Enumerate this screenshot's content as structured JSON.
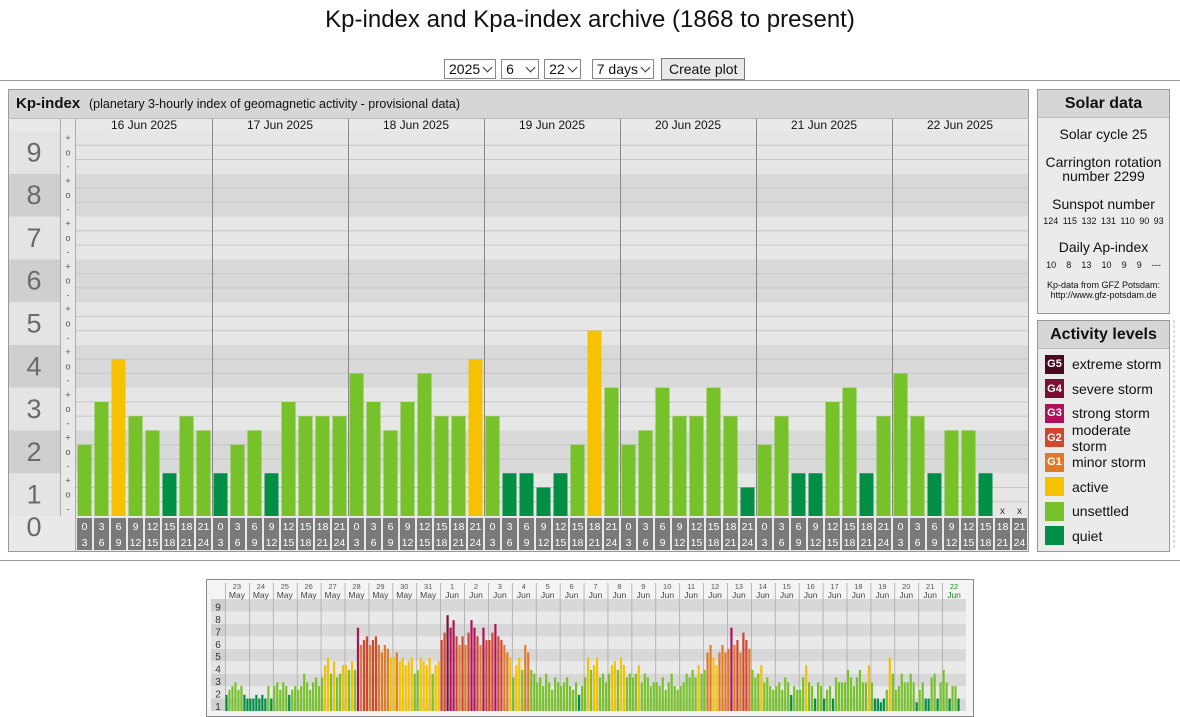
{
  "page": {
    "title": "Kp-index and Kpa-index archive (1868 to present)"
  },
  "controls": {
    "year": "2025",
    "month": "6",
    "day": "22",
    "range": "7 days",
    "button": "Create plot"
  },
  "colors": {
    "quiet": "#008f44",
    "unsettled": "#77c22a",
    "active": "#f6c200",
    "G1": "#e07a26",
    "G2": "#d2452e",
    "G3": "#b0125a",
    "G4": "#7b1030",
    "G5": "#4a0a22"
  },
  "chart_data": [
    {
      "type": "bar",
      "title": "Kp-index",
      "subtitle": "(planetary 3-hourly index of geomagnetic activity - provisional data)",
      "ylim": [
        0,
        9
      ],
      "y_ticks": [
        "0",
        "1",
        "2",
        "3",
        "4",
        "5",
        "6",
        "7",
        "8",
        "9"
      ],
      "minor_marks": [
        "-",
        "o",
        "+"
      ],
      "days": [
        "16 Jun 2025",
        "17 Jun 2025",
        "18 Jun 2025",
        "19 Jun 2025",
        "20 Jun 2025",
        "21 Jun 2025",
        "22 Jun 2025"
      ],
      "intervals": [
        [
          "0",
          "3"
        ],
        [
          "3",
          "6"
        ],
        [
          "6",
          "9"
        ],
        [
          "9",
          "12"
        ],
        [
          "12",
          "15"
        ],
        [
          "15",
          "18"
        ],
        [
          "18",
          "21"
        ],
        [
          "21",
          "24"
        ]
      ],
      "missing_label": "x",
      "values": [
        [
          1.667,
          2.667,
          3.667,
          2.333,
          2.0,
          1.0,
          2.333,
          2.0
        ],
        [
          1.0,
          1.667,
          2.0,
          1.0,
          2.667,
          2.333,
          2.333,
          2.333
        ],
        [
          3.333,
          2.667,
          2.0,
          2.667,
          3.333,
          2.333,
          2.333,
          3.667
        ],
        [
          2.333,
          1.0,
          1.0,
          0.667,
          1.0,
          1.667,
          4.333,
          3.0
        ],
        [
          1.667,
          2.0,
          3.0,
          2.333,
          2.333,
          3.0,
          2.333,
          0.667
        ],
        [
          1.667,
          2.333,
          1.0,
          1.0,
          2.667,
          3.0,
          1.0,
          2.333
        ],
        [
          3.333,
          2.333,
          1.0,
          2.0,
          2.0,
          1.0,
          null,
          null
        ]
      ]
    },
    {
      "type": "bar",
      "title": "",
      "ylim": [
        0,
        9
      ],
      "y_ticks": [
        "1",
        "2",
        "3",
        "4",
        "5",
        "6",
        "7",
        "8",
        "9"
      ],
      "dates": [
        [
          "23",
          "May"
        ],
        [
          "24",
          "May"
        ],
        [
          "25",
          "May"
        ],
        [
          "26",
          "May"
        ],
        [
          "27",
          "May"
        ],
        [
          "28",
          "May"
        ],
        [
          "29",
          "May"
        ],
        [
          "30",
          "May"
        ],
        [
          "31",
          "May"
        ],
        [
          "1",
          "Jun"
        ],
        [
          "2",
          "Jun"
        ],
        [
          "3",
          "Jun"
        ],
        [
          "4",
          "Jun"
        ],
        [
          "5",
          "Jun"
        ],
        [
          "6",
          "Jun"
        ],
        [
          "7",
          "Jun"
        ],
        [
          "8",
          "Jun"
        ],
        [
          "9",
          "Jun"
        ],
        [
          "10",
          "Jun"
        ],
        [
          "11",
          "Jun"
        ],
        [
          "12",
          "Jun"
        ],
        [
          "13",
          "Jun"
        ],
        [
          "14",
          "Jun"
        ],
        [
          "15",
          "Jun"
        ],
        [
          "16",
          "Jun"
        ],
        [
          "17",
          "Jun"
        ],
        [
          "18",
          "Jun"
        ],
        [
          "19",
          "Jun"
        ],
        [
          "20",
          "Jun"
        ],
        [
          "21",
          "Jun"
        ],
        [
          "22",
          "Jun"
        ]
      ],
      "values": [
        [
          1.3,
          1.7,
          2.0,
          2.3,
          1.7,
          2.0,
          1.3,
          1.0
        ],
        [
          1.0,
          1.0,
          1.3,
          1.0,
          1.3,
          1.0,
          2.0,
          1.0
        ],
        [
          2.0,
          2.3,
          1.7,
          2.3,
          2.0,
          1.3,
          1.7,
          2.0
        ],
        [
          1.7,
          2.0,
          3.0,
          2.3,
          1.7,
          2.3,
          2.7,
          2.0
        ],
        [
          2.7,
          3.7,
          4.3,
          3.0,
          4.0,
          2.7,
          3.0,
          3.7
        ],
        [
          3.7,
          3.3,
          4.0,
          3.3,
          6.7,
          5.3,
          5.7,
          6.0
        ],
        [
          5.3,
          5.7,
          6.0,
          5.3,
          4.7,
          5.3,
          5.0,
          4.3
        ],
        [
          4.3,
          4.7,
          4.0,
          4.3,
          3.7,
          4.0,
          4.3,
          3.0
        ],
        [
          3.3,
          4.3,
          4.0,
          3.7,
          4.3,
          3.0,
          3.7,
          4.0
        ],
        [
          5.7,
          6.3,
          7.7,
          6.7,
          7.3,
          6.0,
          5.3,
          6.0
        ],
        [
          5.3,
          6.3,
          7.3,
          6.7,
          6.0,
          5.3,
          6.7,
          5.7
        ],
        [
          5.7,
          6.3,
          7.0,
          6.0,
          5.7,
          5.3,
          4.7,
          4.3
        ],
        [
          2.7,
          3.7,
          4.3,
          3.3,
          5.3,
          4.7,
          3.3,
          3.0
        ],
        [
          2.3,
          2.7,
          2.0,
          3.0,
          2.3,
          1.7,
          2.7,
          2.3
        ],
        [
          2.0,
          2.3,
          2.7,
          2.0,
          1.7,
          2.3,
          1.3,
          2.0
        ],
        [
          2.7,
          4.3,
          3.3,
          3.7,
          4.3,
          2.7,
          3.0,
          2.3
        ],
        [
          3.0,
          3.7,
          4.0,
          3.3,
          4.3,
          3.7,
          2.7,
          3.0
        ],
        [
          2.7,
          3.0,
          3.7,
          2.3,
          3.0,
          2.7,
          2.0,
          2.3
        ],
        [
          2.3,
          2.0,
          2.7,
          1.7,
          2.3,
          3.0,
          2.0,
          1.7
        ],
        [
          2.0,
          2.3,
          3.0,
          2.7,
          3.3,
          2.7,
          3.7,
          3.0
        ],
        [
          3.3,
          4.7,
          5.3,
          4.3,
          3.7,
          4.7,
          5.3,
          4.7
        ],
        [
          5.0,
          6.7,
          5.3,
          5.7,
          4.7,
          6.3,
          5.7,
          5.0
        ],
        [
          3.3,
          2.7,
          3.0,
          3.7,
          2.3,
          2.7,
          2.0,
          1.7
        ],
        [
          2.0,
          2.3,
          1.7,
          2.7,
          2.3,
          1.3,
          2.0,
          1.7
        ],
        [
          1.7,
          2.7,
          3.7,
          2.3,
          2.0,
          1.0,
          2.3,
          2.0
        ],
        [
          1.0,
          1.7,
          2.0,
          1.0,
          2.7,
          2.3,
          2.3,
          2.3
        ],
        [
          3.3,
          2.7,
          2.0,
          2.7,
          3.3,
          2.3,
          2.3,
          3.7
        ],
        [
          2.3,
          1.0,
          1.0,
          0.7,
          1.0,
          1.7,
          4.3,
          3.0
        ],
        [
          1.7,
          2.0,
          3.0,
          2.3,
          2.3,
          3.0,
          2.3,
          0.7
        ],
        [
          1.7,
          2.3,
          1.0,
          1.0,
          2.7,
          3.0,
          1.0,
          2.3
        ],
        [
          3.3,
          2.3,
          1.0,
          2.0,
          2.0,
          1.0,
          null,
          null
        ]
      ]
    }
  ],
  "solar": {
    "title": "Solar data",
    "cycle": "Solar cycle 25",
    "carrington_1": "Carrington rotation",
    "carrington_2": "number 2299",
    "sunspot_label": "Sunspot number",
    "sunspots": [
      "124",
      "115",
      "132",
      "131",
      "110",
      "90",
      "93"
    ],
    "ap_label": "Daily Ap-index",
    "ap": [
      "10",
      "8",
      "13",
      "10",
      "9",
      "9",
      "---"
    ],
    "source_1": "Kp-data from GFZ Potsdam:",
    "source_2": "http://www.gfz-potsdam.de"
  },
  "activity": {
    "title": "Activity levels",
    "levels": [
      {
        "code": "G5",
        "label": "extreme storm",
        "color": "#4a0a22"
      },
      {
        "code": "G4",
        "label": "severe storm",
        "color": "#7b1030"
      },
      {
        "code": "G3",
        "label": "strong storm",
        "color": "#b0125a"
      },
      {
        "code": "G2",
        "label": "moderate storm",
        "color": "#d2452e"
      },
      {
        "code": "G1",
        "label": "minor storm",
        "color": "#e07a26"
      },
      {
        "code": "",
        "label": "active",
        "color": "#f6c200"
      },
      {
        "code": "",
        "label": "unsettled",
        "color": "#77c22a"
      },
      {
        "code": "",
        "label": "quiet",
        "color": "#008f44"
      }
    ]
  }
}
